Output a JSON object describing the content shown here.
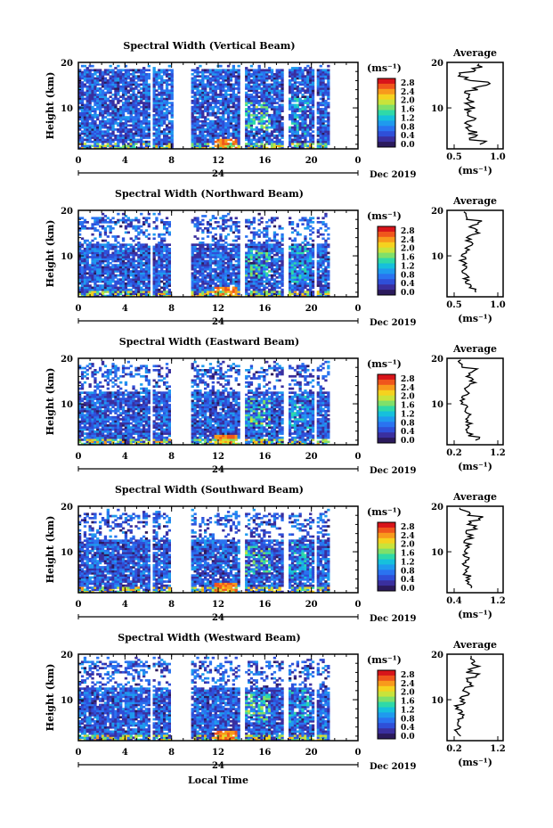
{
  "figure": {
    "date_label": "Dec 2019",
    "day_label": "24",
    "xlabel": "Local Time",
    "ylabel": "Height (km)",
    "unit": "(ms⁻¹)",
    "avg_title": "Average",
    "avg_xlabel": "(ms⁻¹)"
  },
  "colorbar": {
    "ticks": [
      "2.8",
      "2.4",
      "2.0",
      "1.6",
      "1.2",
      "0.8",
      "0.4",
      "0.0"
    ],
    "colors": [
      "#2b1a5c",
      "#3a2f9e",
      "#2f4fd8",
      "#2a73f0",
      "#1f9aee",
      "#16c0dc",
      "#2fd9a8",
      "#7fe06a",
      "#c9e33b",
      "#f5d21f",
      "#f89a1c",
      "#f0561c",
      "#d8141a"
    ]
  },
  "chart_data": [
    {
      "type": "heatmap",
      "title": "Spectral Width (Vertical Beam)",
      "xlabel": "",
      "ylabel": "Height (km)",
      "xlim": [
        0,
        24
      ],
      "ylim": [
        1,
        20
      ],
      "xticks": [
        "0",
        "4",
        "8",
        "12",
        "16",
        "20",
        "0"
      ],
      "yticks": [
        "20",
        "10"
      ],
      "data_gaps_hours": [
        [
          6.0,
          6.2
        ],
        [
          8.0,
          9.6
        ],
        [
          13.8,
          14.1
        ],
        [
          17.6,
          17.9
        ],
        [
          20.1,
          20.4
        ],
        [
          21.4,
          24.0
        ]
      ],
      "profile": {
        "title": "Average",
        "xlabel": "(ms⁻¹)",
        "xlim": [
          0.3,
          1.0
        ],
        "xticks": [
          "0.5",
          "1.0"
        ],
        "yticks": [
          "20",
          "10"
        ],
        "height_km": [
          2,
          3,
          4,
          5,
          6,
          7,
          8,
          9,
          10,
          11,
          12,
          13,
          14,
          15,
          16,
          17,
          18,
          19
        ],
        "values": [
          0.75,
          0.6,
          0.62,
          0.58,
          0.55,
          0.6,
          0.57,
          0.55,
          0.6,
          0.58,
          0.52,
          0.55,
          0.65,
          0.8,
          0.55,
          0.5,
          0.62,
          0.7
        ]
      }
    },
    {
      "type": "heatmap",
      "title": "Spectral Width (Northward Beam)",
      "xlabel": "",
      "ylabel": "Height (km)",
      "xlim": [
        0,
        24
      ],
      "ylim": [
        1,
        20
      ],
      "xticks": [
        "0",
        "4",
        "8",
        "12",
        "16",
        "20",
        "0"
      ],
      "yticks": [
        "20",
        "10"
      ],
      "data_gaps_hours": [
        [
          6.0,
          6.2
        ],
        [
          7.8,
          9.6
        ],
        [
          13.8,
          14.1
        ],
        [
          17.6,
          17.9
        ],
        [
          20.1,
          20.4
        ],
        [
          21.4,
          24.0
        ]
      ],
      "profile": {
        "title": "Average",
        "xlabel": "(ms⁻¹)",
        "xlim": [
          0.2,
          1.2
        ],
        "xticks": [
          "0.5",
          "1.0"
        ],
        "yticks": [
          "20",
          "10"
        ],
        "height_km": [
          2,
          3,
          4,
          5,
          6,
          7,
          8,
          9,
          10,
          11,
          12,
          13,
          14,
          15,
          16,
          17,
          18,
          19
        ],
        "values": [
          0.75,
          0.62,
          0.58,
          0.55,
          0.5,
          0.55,
          0.52,
          0.48,
          0.5,
          0.55,
          0.62,
          0.58,
          0.6,
          0.72,
          0.65,
          0.8,
          0.6,
          0.55
        ]
      }
    },
    {
      "type": "heatmap",
      "title": "Spectral Width (Eastward Beam)",
      "xlabel": "",
      "ylabel": "Height (km)",
      "xlim": [
        0,
        24
      ],
      "ylim": [
        1,
        20
      ],
      "xticks": [
        "0",
        "4",
        "8",
        "12",
        "16",
        "20",
        "0"
      ],
      "yticks": [
        "20",
        "10"
      ],
      "data_gaps_hours": [
        [
          6.0,
          6.2
        ],
        [
          7.8,
          9.6
        ],
        [
          13.8,
          14.1
        ],
        [
          17.6,
          17.9
        ],
        [
          20.1,
          20.4
        ],
        [
          21.4,
          24.0
        ]
      ],
      "profile": {
        "title": "Average",
        "xlabel": "(ms⁻¹)",
        "xlim": [
          0.2,
          1.2
        ],
        "xticks": [
          "0.2",
          "1.2"
        ],
        "yticks": [
          "20",
          "10"
        ],
        "height_km": [
          2,
          3,
          4,
          5,
          6,
          7,
          8,
          9,
          10,
          11,
          12,
          13,
          14,
          15,
          16,
          17,
          18,
          19
        ],
        "values": [
          0.75,
          0.6,
          0.58,
          0.6,
          0.55,
          0.58,
          0.5,
          0.55,
          0.48,
          0.5,
          0.6,
          0.55,
          0.65,
          0.62,
          0.55,
          0.7,
          0.5,
          0.4
        ]
      }
    },
    {
      "type": "heatmap",
      "title": "Spectral Width (Southward Beam)",
      "xlabel": "",
      "ylabel": "Height (km)",
      "xlim": [
        0,
        24
      ],
      "ylim": [
        1,
        20
      ],
      "xticks": [
        "0",
        "4",
        "8",
        "12",
        "16",
        "20",
        "0"
      ],
      "yticks": [
        "20",
        "10"
      ],
      "data_gaps_hours": [
        [
          6.0,
          6.2
        ],
        [
          7.8,
          9.6
        ],
        [
          13.8,
          14.1
        ],
        [
          17.6,
          17.9
        ],
        [
          20.1,
          20.4
        ],
        [
          21.4,
          24.0
        ]
      ],
      "profile": {
        "title": "Average",
        "xlabel": "(ms⁻¹)",
        "xlim": [
          0.2,
          1.3
        ],
        "xticks": [
          "0.4",
          "1.2"
        ],
        "yticks": [
          "20",
          "10"
        ],
        "height_km": [
          2,
          3,
          4,
          5,
          6,
          7,
          8,
          9,
          10,
          11,
          12,
          13,
          14,
          15,
          16,
          17,
          18,
          19
        ],
        "values": [
          0.7,
          0.6,
          0.62,
          0.58,
          0.6,
          0.55,
          0.58,
          0.55,
          0.6,
          0.62,
          0.58,
          0.65,
          0.6,
          0.75,
          0.62,
          0.85,
          0.6,
          0.5
        ]
      }
    },
    {
      "type": "heatmap",
      "title": "Spectral Width (Westward Beam)",
      "xlabel": "Local Time",
      "ylabel": "Height (km)",
      "xlim": [
        0,
        24
      ],
      "ylim": [
        1,
        20
      ],
      "xticks": [
        "0",
        "4",
        "8",
        "12",
        "16",
        "20",
        "0"
      ],
      "yticks": [
        "20",
        "10"
      ],
      "data_gaps_hours": [
        [
          6.0,
          6.2
        ],
        [
          7.8,
          9.6
        ],
        [
          13.8,
          14.1
        ],
        [
          17.6,
          17.9
        ],
        [
          20.1,
          20.4
        ],
        [
          21.4,
          24.0
        ]
      ],
      "profile": {
        "title": "Average",
        "xlabel": "(ms⁻¹)",
        "xlim": [
          0.2,
          1.2
        ],
        "xticks": [
          "0.2",
          "1.2"
        ],
        "yticks": [
          "20",
          "10"
        ],
        "height_km": [
          2,
          3,
          4,
          5,
          6,
          7,
          8,
          9,
          10,
          11,
          12,
          13,
          14,
          15,
          16,
          17,
          18,
          19
        ],
        "values": [
          0.4,
          0.38,
          0.42,
          0.4,
          0.45,
          0.42,
          0.4,
          0.48,
          0.45,
          0.55,
          0.5,
          0.6,
          0.55,
          0.75,
          0.6,
          0.72,
          0.68,
          0.62
        ]
      }
    }
  ]
}
